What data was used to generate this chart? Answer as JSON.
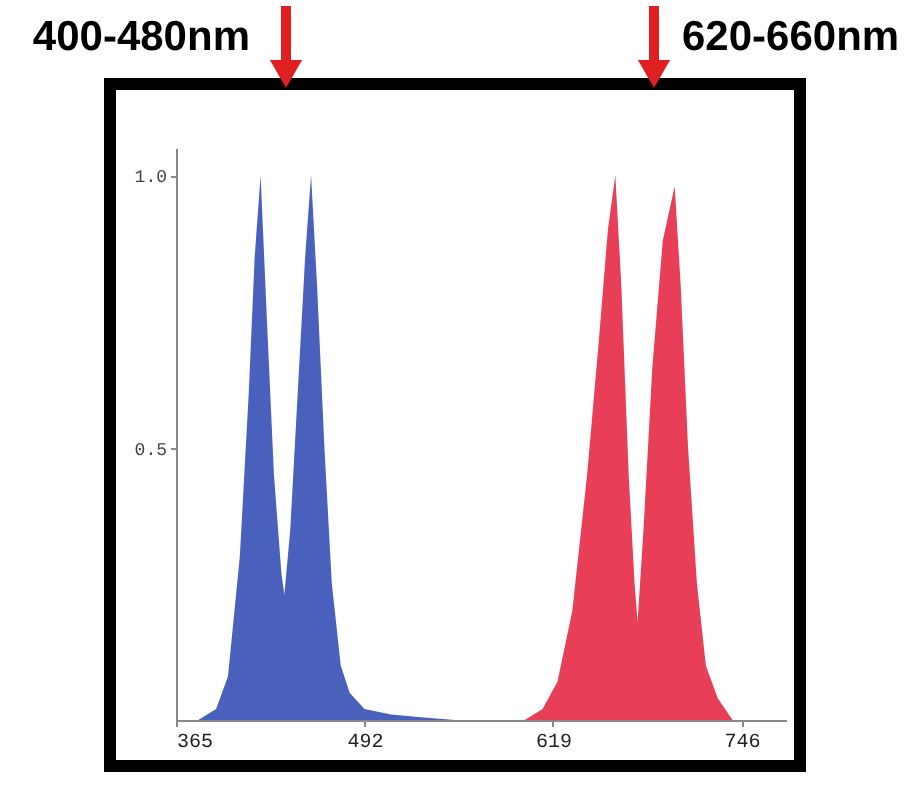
{
  "chart_data": {
    "type": "area",
    "xlim": [
      365,
      776
    ],
    "ylim": [
      0,
      1.05
    ],
    "xticks": [
      365,
      492,
      619,
      746
    ],
    "yticks": [
      {
        "value": 0.5,
        "label": "0.5"
      },
      {
        "value": 1.0,
        "label": "1.0"
      }
    ],
    "grid": false,
    "series": [
      {
        "color": "#3f58b8",
        "x": [
          380,
          392,
          400,
          408,
          414,
          418,
          422,
          426,
          431,
          436,
          438,
          442,
          447,
          452,
          456,
          460,
          465,
          470,
          476,
          482,
          492,
          510,
          530,
          553
        ],
        "values": [
          0,
          0.02,
          0.08,
          0.3,
          0.6,
          0.85,
          1.0,
          0.75,
          0.45,
          0.27,
          0.23,
          0.35,
          0.6,
          0.85,
          1.0,
          0.8,
          0.5,
          0.25,
          0.1,
          0.05,
          0.02,
          0.01,
          0.005,
          0
        ]
      },
      {
        "color": "#e8344e",
        "x": [
          600,
          612,
          622,
          632,
          642,
          650,
          656,
          661,
          665,
          670,
          674,
          676,
          680,
          686,
          693,
          701,
          705,
          710,
          716,
          722,
          730,
          740
        ],
        "values": [
          0,
          0.02,
          0.07,
          0.2,
          0.45,
          0.7,
          0.9,
          1.0,
          0.8,
          0.45,
          0.25,
          0.18,
          0.35,
          0.65,
          0.88,
          0.98,
          0.8,
          0.5,
          0.25,
          0.1,
          0.04,
          0
        ]
      }
    ],
    "annotations": [
      "400-480nm",
      "620-660nm"
    ]
  }
}
